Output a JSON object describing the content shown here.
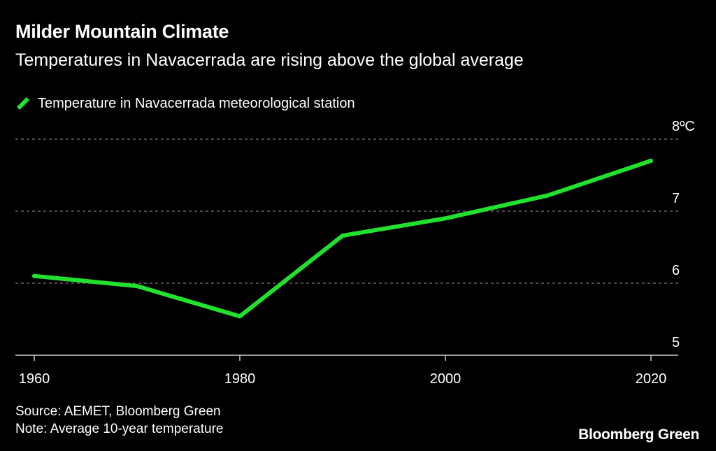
{
  "header": {
    "title": "Milder Mountain Climate",
    "subtitle": "Temperatures in Navacerrada are rising above the global average"
  },
  "legend": {
    "label": "Temperature in Navacerrada meteorological station"
  },
  "colors": {
    "background": "#000000",
    "series": "#22e12e",
    "grid": "#777777",
    "text": "#ffffff"
  },
  "chart_data": {
    "type": "line",
    "title": "Milder Mountain Climate",
    "subtitle": "Temperatures in Navacerrada are rising above the global average",
    "xlabel": "",
    "ylabel": "°C",
    "x": [
      1960,
      1970,
      1980,
      1990,
      2000,
      2010,
      2020
    ],
    "series": [
      {
        "name": "Temperature in Navacerrada meteorological station",
        "values": [
          6.1,
          5.96,
          5.54,
          6.66,
          6.9,
          7.22,
          7.7
        ]
      }
    ],
    "xlim": [
      1960,
      2020
    ],
    "ylim": [
      5,
      8
    ],
    "x_ticks": [
      1960,
      1980,
      2000,
      2020
    ],
    "x_tick_labels": [
      "1960",
      "1980",
      "2000",
      "2020"
    ],
    "y_ticks": [
      5,
      6,
      7,
      8
    ],
    "y_tick_labels": [
      "5",
      "6",
      "7",
      "8ºC"
    ],
    "grid": true,
    "legend_position": "top-left"
  },
  "footer": {
    "source": "Source: AEMET, Bloomberg Green",
    "note": "Note: Average 10-year temperature",
    "brand": "Bloomberg Green"
  }
}
